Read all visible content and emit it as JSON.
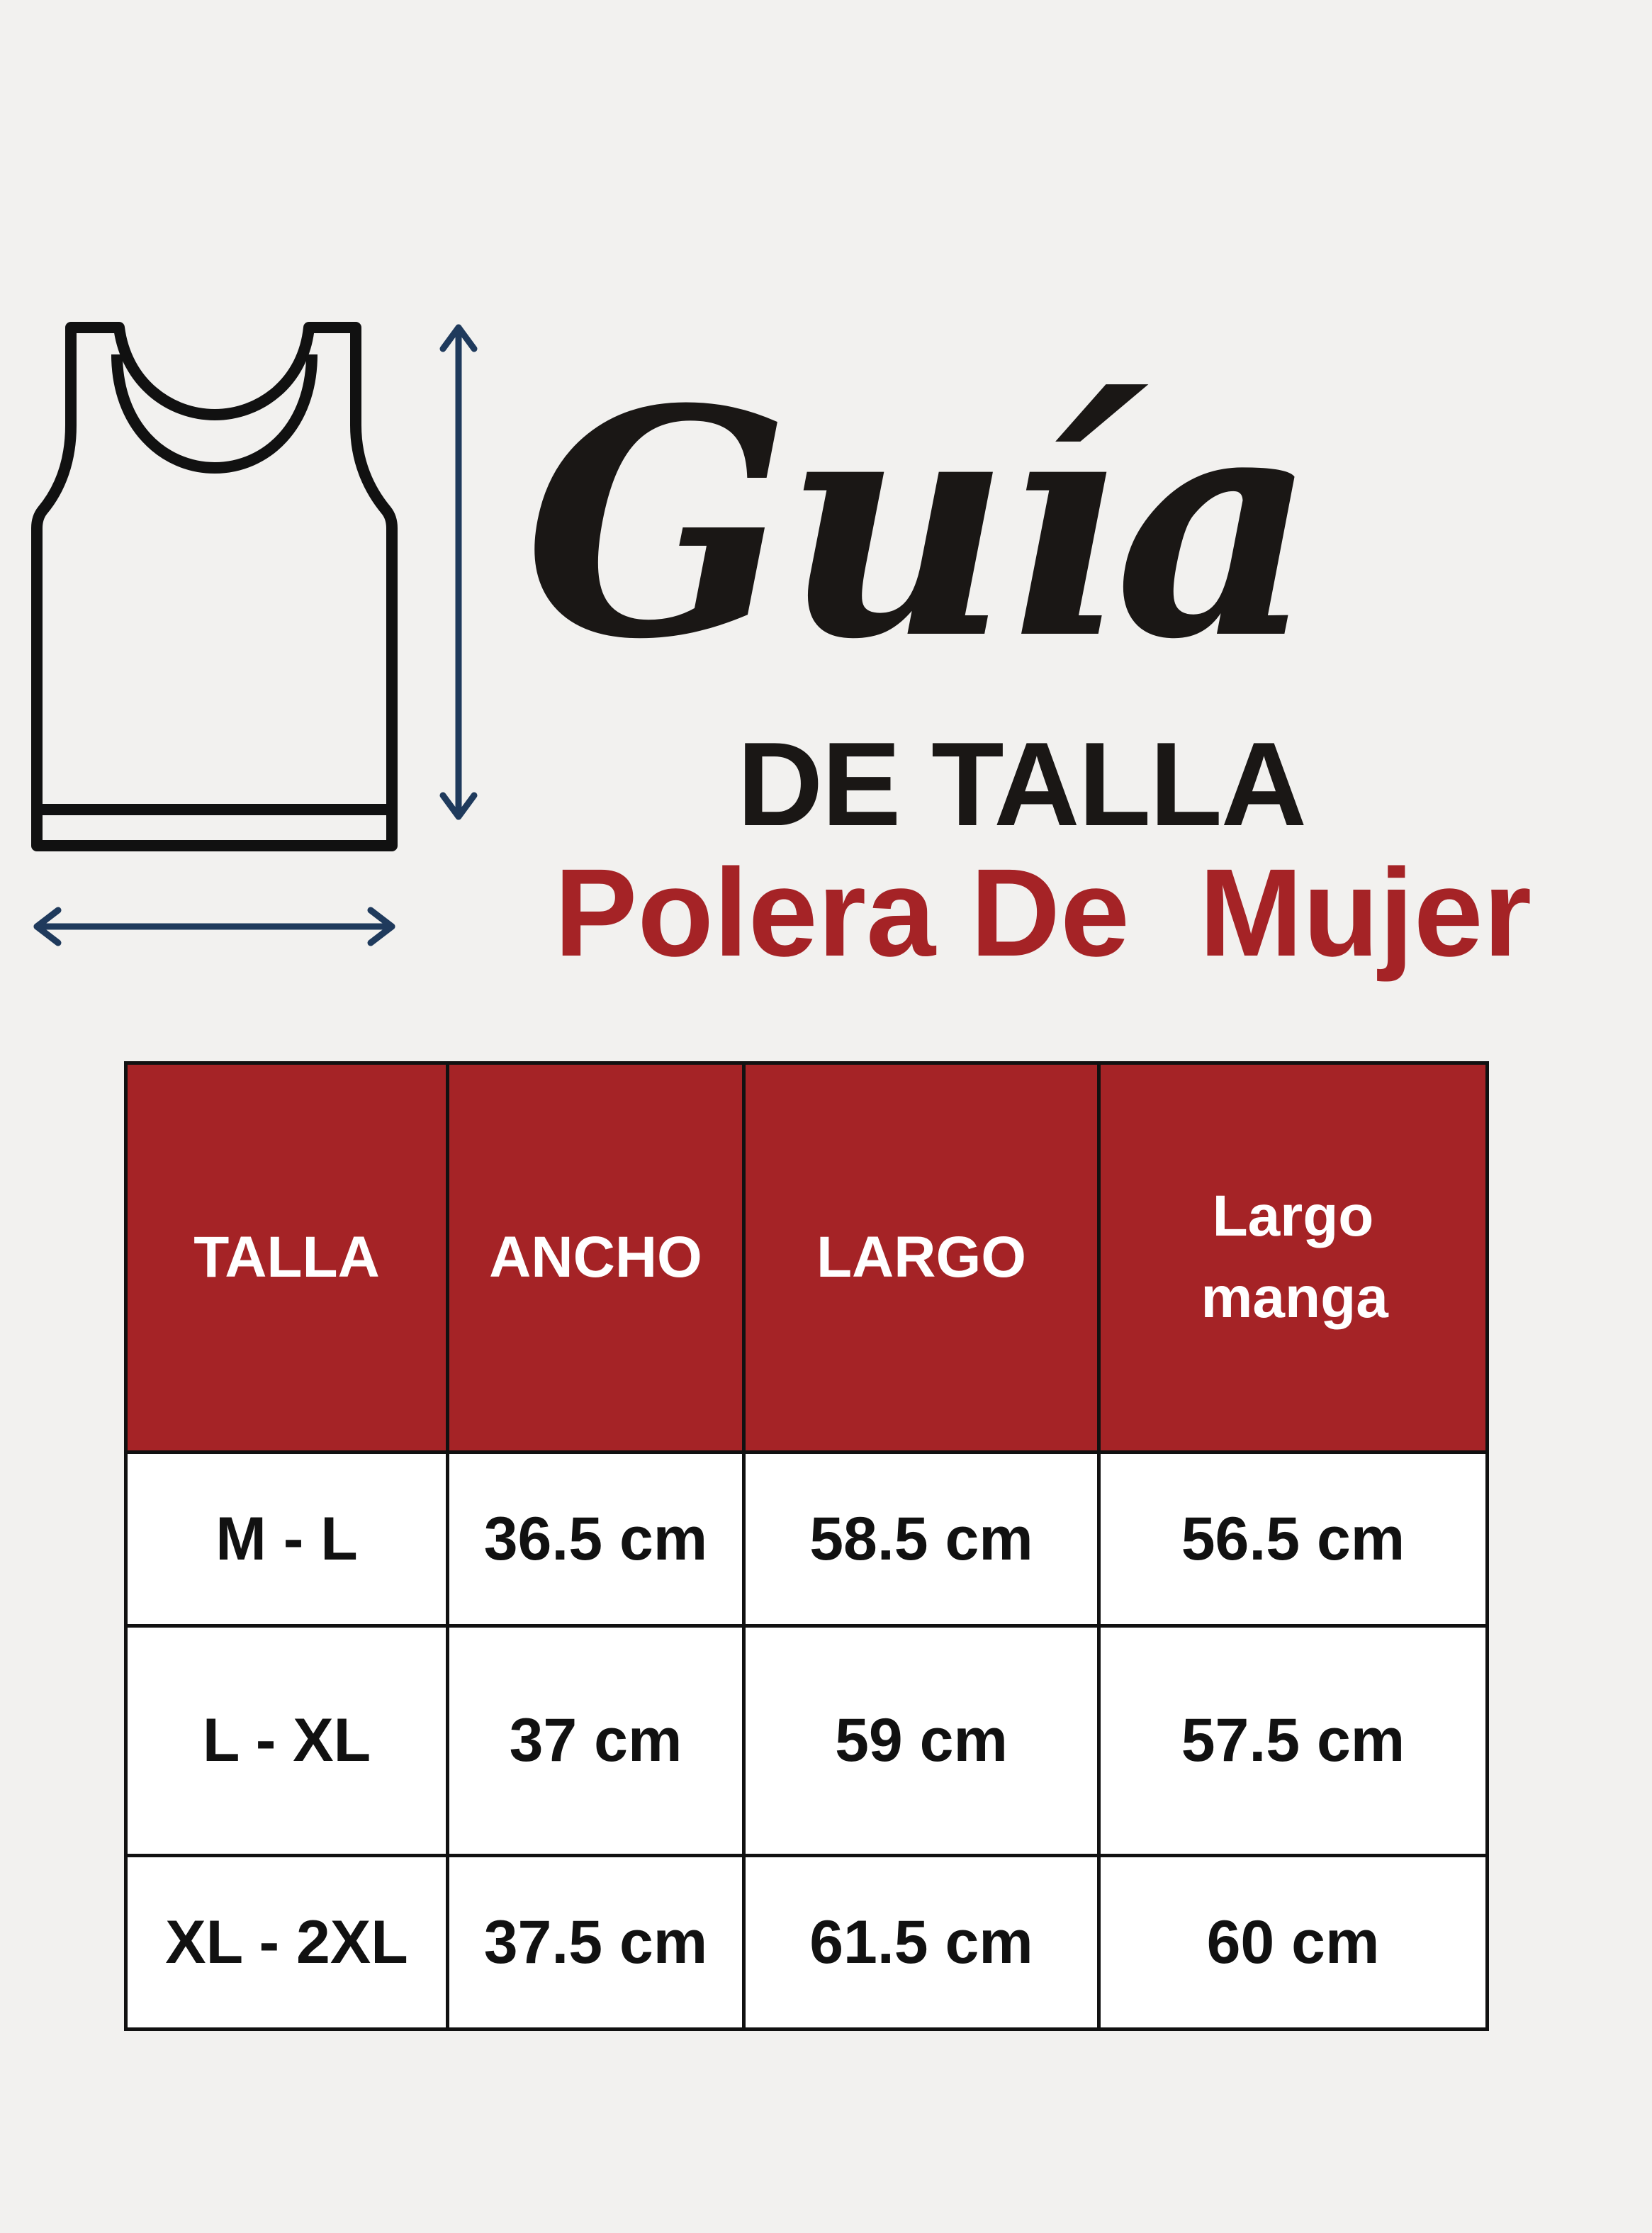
{
  "title": {
    "script": "Guía",
    "line2": "DE TALLA",
    "subtitle": "Polera De  Mujer"
  },
  "colors": {
    "accent": "#a52326",
    "arrow": "#1f3a5c",
    "background": "#f2f1ef"
  },
  "icons": [
    "tank-top-icon",
    "vertical-arrow-icon",
    "horizontal-arrow-icon"
  ],
  "table": {
    "headers": [
      "TALLA",
      "ANCHO",
      "LARGO",
      "Largo manga"
    ],
    "rows": [
      [
        "M - L",
        "36.5 cm",
        "58.5 cm",
        "56.5 cm"
      ],
      [
        "L - XL",
        "37 cm",
        "59 cm",
        "57.5 cm"
      ],
      [
        "XL - 2XL",
        "37.5 cm",
        "61.5 cm",
        "60 cm"
      ]
    ]
  }
}
